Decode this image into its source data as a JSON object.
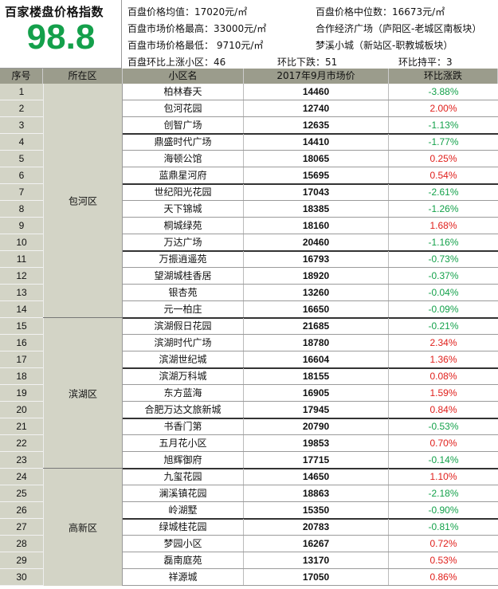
{
  "index": {
    "title": "百家楼盘价格指数",
    "value": "98.8"
  },
  "stats": {
    "avg_price": "百盘价格均值：17020元/㎡",
    "median_price": "百盘价格中位数：16673元/㎡",
    "max_price": "百盘市场价格最高：33000元/㎡",
    "max_project": "合作经济广场（庐阳区-老城区南板块）",
    "min_price": "百盘市场价格最低：  9710元/㎡",
    "min_project": "梦溪小城（新站区-职教城板块）",
    "up_count": "百盘环比上涨小区：46",
    "down_count": "环比下跌：51",
    "flat_count": "环比持平：3"
  },
  "columns": [
    "序号",
    "所在区",
    "小区名",
    "2017年9月市场价",
    "环比涨跌"
  ],
  "districts": [
    {
      "name": "包河区",
      "rows": 14
    },
    {
      "name": "滨湖区",
      "rows": 9
    },
    {
      "name": "高新区",
      "rows": 7
    }
  ],
  "rows": [
    {
      "no": "1",
      "name": "柏林春天",
      "price": "14460",
      "change": "-3.88%"
    },
    {
      "no": "2",
      "name": "包河花园",
      "price": "12740",
      "change": "2.00%"
    },
    {
      "no": "3",
      "name": "创智广场",
      "price": "12635",
      "change": "-1.13%"
    },
    {
      "no": "4",
      "name": "鼎盛时代广场",
      "price": "14410",
      "change": "-1.77%"
    },
    {
      "no": "5",
      "name": "海顿公馆",
      "price": "18065",
      "change": "0.25%"
    },
    {
      "no": "6",
      "name": "蓝鼎星河府",
      "price": "15695",
      "change": "0.54%"
    },
    {
      "no": "7",
      "name": "世纪阳光花园",
      "price": "17043",
      "change": "-2.61%"
    },
    {
      "no": "8",
      "name": "天下锦城",
      "price": "18385",
      "change": "-1.26%"
    },
    {
      "no": "9",
      "name": "桐城绿苑",
      "price": "18160",
      "change": "1.68%"
    },
    {
      "no": "10",
      "name": "万达广场",
      "price": "20460",
      "change": "-1.16%"
    },
    {
      "no": "11",
      "name": "万振逍遥苑",
      "price": "16793",
      "change": "-0.73%"
    },
    {
      "no": "12",
      "name": "望湖城桂香居",
      "price": "18920",
      "change": "-0.37%"
    },
    {
      "no": "13",
      "name": "银杏苑",
      "price": "13260",
      "change": "-0.04%"
    },
    {
      "no": "14",
      "name": "元一柏庄",
      "price": "16650",
      "change": "-0.09%"
    },
    {
      "no": "15",
      "name": "滨湖假日花园",
      "price": "21685",
      "change": "-0.21%"
    },
    {
      "no": "16",
      "name": "滨湖时代广场",
      "price": "18780",
      "change": "2.34%"
    },
    {
      "no": "17",
      "name": "滨湖世纪城",
      "price": "16604",
      "change": "1.36%"
    },
    {
      "no": "18",
      "name": "滨湖万科城",
      "price": "18155",
      "change": "0.08%"
    },
    {
      "no": "19",
      "name": "东方蓝海",
      "price": "16905",
      "change": "1.59%"
    },
    {
      "no": "20",
      "name": "合肥万达文旅新城",
      "price": "17945",
      "change": "0.84%"
    },
    {
      "no": "21",
      "name": "书香门第",
      "price": "20790",
      "change": "-0.53%"
    },
    {
      "no": "22",
      "name": "五月花小区",
      "price": "19853",
      "change": "0.70%"
    },
    {
      "no": "23",
      "name": "旭辉御府",
      "price": "17715",
      "change": "-0.14%"
    },
    {
      "no": "24",
      "name": "九玺花园",
      "price": "14650",
      "change": "1.10%"
    },
    {
      "no": "25",
      "name": "澜溪镇花园",
      "price": "18863",
      "change": "-2.18%"
    },
    {
      "no": "26",
      "name": "岭湖墅",
      "price": "15350",
      "change": "-0.90%"
    },
    {
      "no": "27",
      "name": "绿城桂花园",
      "price": "20783",
      "change": "-0.81%"
    },
    {
      "no": "28",
      "name": "梦园小区",
      "price": "16267",
      "change": "0.72%"
    },
    {
      "no": "29",
      "name": "磊南庭苑",
      "price": "13170",
      "change": "0.53%"
    },
    {
      "no": "30",
      "name": "祥源城",
      "price": "17050",
      "change": "0.86%"
    }
  ],
  "colors": {
    "positive": "#e0201c",
    "negative": "#13a14a",
    "index_value": "#14a04b",
    "header_bg": "#9b9c8c",
    "district_bg": "#d3d4c6"
  }
}
